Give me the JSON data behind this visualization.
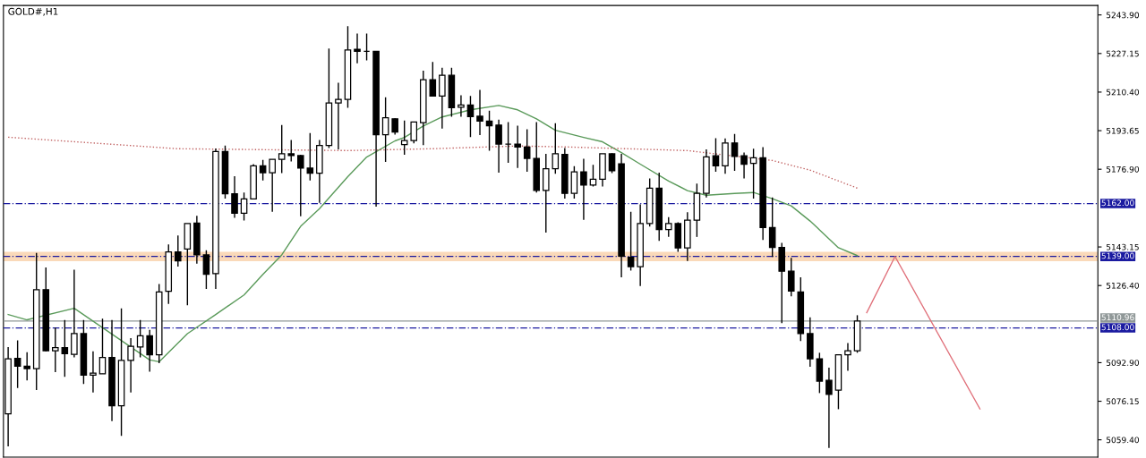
{
  "chart_data": {
    "type": "candlestick",
    "title": "GOLD#,H1",
    "categories": [
      null,
      null,
      null,
      null,
      null,
      null,
      null,
      null,
      null,
      null,
      null,
      null,
      null,
      null,
      null,
      null,
      null,
      null,
      null,
      null,
      null,
      null,
      null,
      null,
      null,
      null,
      null,
      null,
      null,
      null,
      null,
      null,
      null,
      null,
      null,
      null,
      null,
      null,
      null,
      null,
      null,
      null,
      null,
      null,
      null,
      null,
      null,
      null,
      null,
      null,
      null,
      null,
      null,
      null,
      null,
      null,
      null,
      null,
      null,
      null,
      null,
      null,
      null,
      null,
      null,
      null,
      null,
      null,
      null,
      null,
      null,
      null,
      null,
      null,
      null,
      null,
      null,
      null,
      null,
      null,
      null,
      null,
      null,
      null,
      null,
      null,
      null,
      null,
      null,
      null,
      null,
      null,
      null,
      null,
      null,
      null,
      null,
      null,
      null,
      null,
      null,
      null,
      null,
      null,
      null,
      null,
      null,
      null,
      null,
      null,
      null,
      null,
      null,
      null,
      null,
      null
    ],
    "ohlc": [
      [
        5070.7,
        5099.7,
        5056.6,
        5094.6
      ],
      [
        5094.8,
        5102.6,
        5081.9,
        5091.4
      ],
      [
        5091.4,
        5097.4,
        5085.2,
        5090.3
      ],
      [
        5090.3,
        5140.6,
        5081.0,
        5124.6
      ],
      [
        5124.6,
        5134.2,
        5097.8,
        5098.1
      ],
      [
        5098.1,
        5108.1,
        5088.8,
        5099.4
      ],
      [
        5099.4,
        5111.4,
        5086.8,
        5096.8
      ],
      [
        5096.5,
        5133.3,
        5095.2,
        5105.5
      ],
      [
        5105.5,
        5111.4,
        5083.6,
        5087.5
      ],
      [
        5087.5,
        5097.8,
        5080.0,
        5088.4
      ],
      [
        5088.1,
        5112.0,
        5088.1,
        5095.2
      ],
      [
        5095.2,
        5111.4,
        5067.5,
        5074.2
      ],
      [
        5074.2,
        5116.5,
        5061.1,
        5093.9
      ],
      [
        5093.9,
        5103.6,
        5080.0,
        5100.0
      ],
      [
        5099.7,
        5111.4,
        5095.2,
        5104.6
      ],
      [
        5104.6,
        5107.1,
        5089.0,
        5096.3
      ],
      [
        5096.3,
        5127.1,
        5092.7,
        5123.6
      ],
      [
        5123.9,
        5144.2,
        5118.4,
        5141.0
      ],
      [
        5141.0,
        5148.1,
        5134.6,
        5137.1
      ],
      [
        5142.3,
        5153.3,
        5117.8,
        5153.3
      ],
      [
        5153.5,
        5156.7,
        5135.9,
        5139.7
      ],
      [
        5139.7,
        5141.7,
        5124.9,
        5131.3
      ],
      [
        5131.6,
        5185.9,
        5124.9,
        5184.6
      ],
      [
        5184.6,
        5187.2,
        5164.2,
        5166.2
      ],
      [
        5166.2,
        5173.9,
        5155.8,
        5157.8
      ],
      [
        5157.8,
        5166.8,
        5154.6,
        5164.0
      ],
      [
        5164.0,
        5179.1,
        5164.0,
        5178.4
      ],
      [
        5178.4,
        5181.0,
        5172.0,
        5175.4
      ],
      [
        5175.4,
        5181.2,
        5158.4,
        5181.2
      ],
      [
        5181.2,
        5196.1,
        5175.2,
        5183.6
      ],
      [
        5183.6,
        5189.6,
        5180.3,
        5182.8
      ],
      [
        5182.8,
        5183.2,
        5156.5,
        5177.4
      ],
      [
        5177.4,
        5192.6,
        5172.0,
        5175.2
      ],
      [
        5175.2,
        5189.6,
        5162.3,
        5187.2
      ],
      [
        5187.2,
        5229.3,
        5186.1,
        5205.7
      ],
      [
        5205.7,
        5214.5,
        5185.5,
        5207.2
      ],
      [
        5207.2,
        5239.0,
        5203.6,
        5228.7
      ],
      [
        5229.0,
        5235.8,
        5222.9,
        5228.1
      ],
      [
        5228.1,
        5235.8,
        5224.2,
        5228.1
      ],
      [
        5228.1,
        5228.1,
        5160.7,
        5191.9
      ],
      [
        5191.9,
        5208.1,
        5180.1,
        5199.3
      ],
      [
        5198.8,
        5199.0,
        5191.9,
        5193.0
      ],
      [
        5187.6,
        5198.0,
        5183.2,
        5189.4
      ],
      [
        5189.4,
        5197.4,
        5188.1,
        5197.4
      ],
      [
        5197.1,
        5219.7,
        5187.4,
        5215.8
      ],
      [
        5215.8,
        5223.5,
        5208.7,
        5208.7
      ],
      [
        5208.7,
        5221.0,
        5194.5,
        5217.7
      ],
      [
        5217.7,
        5221.0,
        5199.7,
        5203.6
      ],
      [
        5203.8,
        5209.0,
        5199.7,
        5204.8
      ],
      [
        5204.8,
        5208.7,
        5190.9,
        5199.7
      ],
      [
        5199.9,
        5211.3,
        5191.7,
        5197.8
      ],
      [
        5197.8,
        5202.3,
        5184.9,
        5195.8
      ],
      [
        5196.1,
        5198.4,
        5175.4,
        5187.8
      ],
      [
        5187.8,
        5197.4,
        5179.7,
        5187.8
      ],
      [
        5187.8,
        5195.8,
        5177.5,
        5186.5
      ],
      [
        5186.5,
        5194.3,
        5175.8,
        5181.6
      ],
      [
        5181.6,
        5197.4,
        5166.8,
        5167.7
      ],
      [
        5167.7,
        5183.6,
        5149.4,
        5177.1
      ],
      [
        5177.1,
        5196.9,
        5174.9,
        5183.6
      ],
      [
        5183.3,
        5186.1,
        5164.2,
        5166.4
      ],
      [
        5166.4,
        5178.2,
        5164.2,
        5175.8
      ],
      [
        5175.8,
        5181.4,
        5154.9,
        5170.0
      ],
      [
        5170.0,
        5178.8,
        5169.4,
        5172.6
      ],
      [
        5172.6,
        5183.6,
        5169.4,
        5183.6
      ],
      [
        5183.6,
        5183.9,
        5175.2,
        5176.2
      ],
      [
        5179.3,
        5183.6,
        5130.0,
        5139.1
      ],
      [
        5138.7,
        5158.4,
        5132.9,
        5134.6
      ],
      [
        5134.6,
        5161.6,
        5126.2,
        5153.3
      ],
      [
        5153.3,
        5172.9,
        5152.0,
        5168.7
      ],
      [
        5168.7,
        5175.4,
        5145.8,
        5150.7
      ],
      [
        5150.7,
        5156.1,
        5147.5,
        5153.3
      ],
      [
        5153.3,
        5153.9,
        5141.0,
        5142.7
      ],
      [
        5142.7,
        5158.2,
        5137.1,
        5154.8
      ],
      [
        5154.8,
        5170.7,
        5147.5,
        5166.4
      ],
      [
        5166.4,
        5185.5,
        5164.6,
        5182.3
      ],
      [
        5182.7,
        5190.4,
        5175.8,
        5178.4
      ],
      [
        5178.4,
        5190.3,
        5174.9,
        5188.3
      ],
      [
        5188.3,
        5192.2,
        5176.2,
        5182.5
      ],
      [
        5182.7,
        5184.2,
        5172.9,
        5179.1
      ],
      [
        5179.4,
        5185.8,
        5164.2,
        5181.9
      ],
      [
        5181.9,
        5186.5,
        5146.2,
        5151.6
      ],
      [
        5151.6,
        5164.6,
        5138.8,
        5142.9
      ],
      [
        5142.9,
        5144.9,
        5110.1,
        5132.6
      ],
      [
        5132.6,
        5138.4,
        5121.7,
        5124.0
      ],
      [
        5123.6,
        5130.0,
        5102.3,
        5105.5
      ],
      [
        5105.5,
        5112.6,
        5091.1,
        5094.6
      ],
      [
        5094.6,
        5097.2,
        5079.7,
        5084.9
      ],
      [
        5085.2,
        5090.7,
        5055.9,
        5079.1
      ],
      [
        5081.0,
        5096.3,
        5072.7,
        5096.3
      ],
      [
        5096.3,
        5101.4,
        5089.4,
        5098.1
      ],
      [
        5098.1,
        5113.5,
        5097.2,
        5111.0
      ],
      null,
      null,
      null,
      null,
      null,
      null,
      null,
      null,
      null,
      null,
      null,
      null,
      null,
      null,
      null,
      null,
      null,
      null,
      null,
      null,
      null,
      null,
      null,
      null,
      null
    ],
    "series": [
      {
        "type": "line",
        "color": "#5a9a5a",
        "line_style": "solid",
        "values": [
          5113.8,
          null,
          5111.5,
          null,
          null,
          null,
          null,
          5116.5,
          null,
          null,
          null,
          null,
          null,
          null,
          null,
          5094.1,
          5093.3,
          null,
          null,
          5105.5,
          null,
          null,
          5113.8,
          null,
          null,
          5122.3,
          null,
          5131.2,
          null,
          5139.7,
          null,
          5152.1,
          null,
          5159.8,
          null,
          null,
          5173.7,
          null,
          5182.2,
          null,
          null,
          5189.2,
          5190.7,
          null,
          5195.7,
          null,
          5199.6,
          null,
          null,
          5202.7,
          null,
          null,
          5204.6,
          null,
          5202.7,
          null,
          5198.8,
          null,
          5193.8,
          null,
          null,
          5190.7,
          null,
          5188.8,
          null,
          5184.1,
          null,
          5179.1,
          null,
          null,
          5171.8,
          null,
          5167.6,
          null,
          5165.6,
          null,
          null,
          5166.4,
          null,
          5166.8,
          null,
          5164.1,
          null,
          5161.0,
          null,
          5154.4,
          5150.6,
          null,
          5142.8,
          null,
          5139.4,
          null,
          null,
          null,
          null,
          null,
          null,
          null,
          null,
          null,
          null,
          null,
          null,
          null,
          null,
          null,
          null,
          null,
          null,
          null,
          null,
          null,
          null,
          null,
          null,
          null
        ]
      },
      {
        "type": "line",
        "color": "#c06060",
        "line_style": "dotted",
        "values": [
          5190.8,
          null,
          null,
          null,
          null,
          null,
          null,
          null,
          null,
          null,
          null,
          null,
          null,
          null,
          null,
          null,
          null,
          null,
          5185.8,
          null,
          null,
          null,
          null,
          null,
          null,
          null,
          null,
          null,
          null,
          null,
          null,
          null,
          null,
          null,
          null,
          null,
          5185.0,
          null,
          null,
          null,
          null,
          null,
          null,
          null,
          null,
          5185.8,
          null,
          null,
          null,
          null,
          null,
          null,
          null,
          null,
          5187.0,
          null,
          null,
          null,
          null,
          5186.6,
          null,
          null,
          null,
          null,
          null,
          null,
          null,
          null,
          null,
          null,
          null,
          null,
          5185.0,
          null,
          null,
          null,
          null,
          null,
          null,
          null,
          null,
          5180.7,
          null,
          null,
          null,
          5176.5,
          null,
          null,
          null,
          null,
          5168.7,
          null,
          null,
          null,
          null,
          null,
          null,
          null,
          null,
          null,
          null,
          null,
          null,
          null,
          null,
          null,
          null,
          null,
          null,
          null,
          null,
          null,
          null,
          null,
          null,
          null
        ]
      },
      {
        "type": "line",
        "color": "#e0707a",
        "line_style": "solid",
        "values": [
          null,
          null,
          null,
          null,
          null,
          null,
          null,
          null,
          null,
          null,
          null,
          null,
          null,
          null,
          null,
          null,
          null,
          null,
          null,
          null,
          null,
          null,
          null,
          null,
          null,
          null,
          null,
          null,
          null,
          null,
          null,
          null,
          null,
          null,
          null,
          null,
          null,
          null,
          null,
          null,
          null,
          null,
          null,
          null,
          null,
          null,
          null,
          null,
          null,
          null,
          null,
          null,
          null,
          null,
          null,
          null,
          null,
          null,
          null,
          null,
          null,
          null,
          null,
          null,
          null,
          null,
          null,
          null,
          null,
          null,
          null,
          null,
          null,
          null,
          null,
          null,
          null,
          null,
          null,
          null,
          null,
          null,
          null,
          null,
          null,
          null,
          null,
          null,
          null,
          null,
          null,
          5114.6,
          null,
          null,
          5139.0,
          null,
          null,
          null,
          null,
          null,
          null,
          null,
          null,
          5072.8,
          null,
          null,
          null,
          null,
          null,
          null,
          null,
          null,
          null,
          null,
          null,
          null
        ]
      }
    ],
    "ylim": [
      5051.9,
      5248.0
    ],
    "yticks": [
      {
        "value": 5243.9,
        "label": "5243.90"
      },
      {
        "value": 5227.15,
        "label": "5227.15"
      },
      {
        "value": 5210.4,
        "label": "5210.40"
      },
      {
        "value": 5193.65,
        "label": "5193.65"
      },
      {
        "value": 5176.9,
        "label": "5176.90"
      },
      {
        "value": 5143.15,
        "label": "5143.15"
      },
      {
        "value": 5126.4,
        "label": "5126.40"
      },
      {
        "value": 5092.9,
        "label": "5092.90"
      },
      {
        "value": 5076.15,
        "label": "5076.15"
      },
      {
        "value": 5059.4,
        "label": "5059.40"
      }
    ],
    "ref_lines": [
      {
        "axis": "y",
        "value": 5162.0,
        "label": "5162.00",
        "color": "#1a1aa0",
        "line_style": "dashed"
      },
      {
        "axis": "y",
        "value": 5139.0,
        "label": "5139.00",
        "color": "#1a1aa0",
        "line_style": "dashed"
      },
      {
        "axis": "y",
        "value": 5108.0,
        "label": "5108.00",
        "color": "#1a1aa0",
        "line_style": "dashed"
      },
      {
        "axis": "y",
        "value": 5110.96,
        "label": "5110.96",
        "color": "#909898",
        "line_style": "solid"
      }
    ],
    "bands": [
      {
        "axis": "y",
        "from": 5137.0,
        "to": 5141.0,
        "color": "#f9cfa8"
      }
    ],
    "tick_labels": "y",
    "grid": false,
    "legend": false
  }
}
